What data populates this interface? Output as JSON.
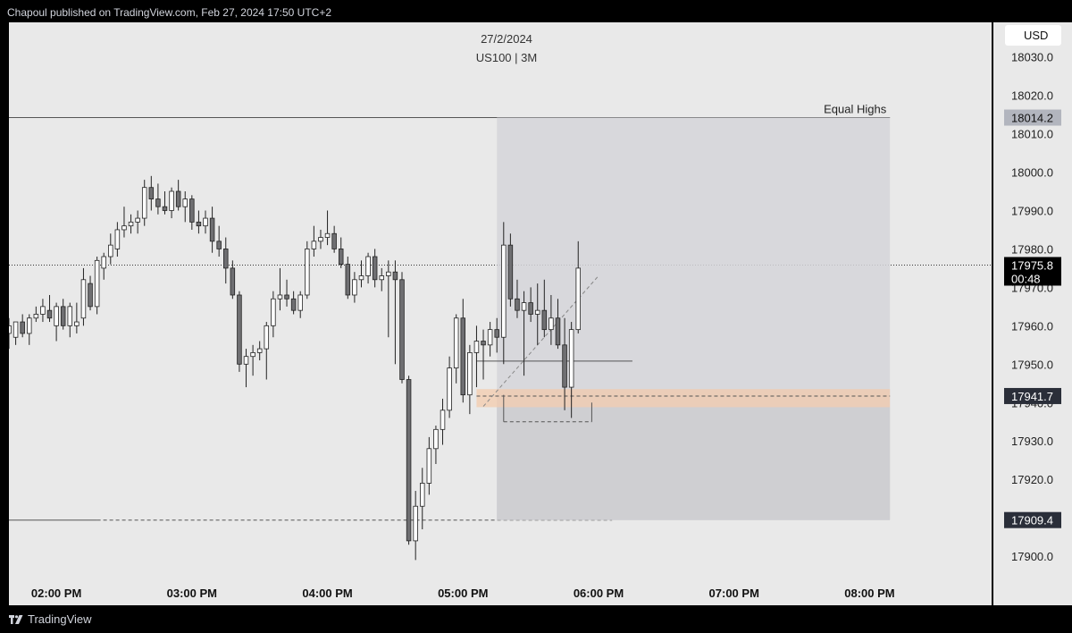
{
  "header": {
    "published": "Chapoul published on TradingView.com, Feb 27, 2024 17:50 UTC+2"
  },
  "footer": {
    "brand": "TradingView",
    "logo_icon": "tradingview-logo-icon"
  },
  "chart_data": {
    "type": "candlestick",
    "title": "27/2/2024",
    "subtitle": "US100 | 3M",
    "currency": "USD",
    "yticks": [
      17900.0,
      17910.0,
      17920.0,
      17930.0,
      17940.0,
      17950.0,
      17960.0,
      17970.0,
      17980.0,
      17990.0,
      18000.0,
      18010.0,
      18020.0,
      18030.0
    ],
    "ylim": [
      17893.5,
      18039.0
    ],
    "xticks": [
      "02:00 PM",
      "03:00 PM",
      "04:00 PM",
      "05:00 PM",
      "06:00 PM",
      "07:00 PM",
      "08:00 PM"
    ],
    "xtick_minutes": [
      840,
      900,
      960,
      1020,
      1080,
      1140,
      1200
    ],
    "xlim_minutes": [
      819,
      1254
    ],
    "price_labels": [
      {
        "text": "18014.2",
        "value": 18014.2,
        "style": "gray"
      },
      {
        "text": "17975.8",
        "value": 17975.8,
        "style": "black",
        "sub": "00:48"
      },
      {
        "text": "17941.7",
        "value": 17941.7,
        "style": "dark"
      },
      {
        "text": "17909.4",
        "value": 17909.4,
        "style": "dark"
      }
    ],
    "annotations": [
      {
        "type": "hline",
        "value": 18014.2,
        "from": 819,
        "to": 1209,
        "label": "Equal Highs"
      },
      {
        "type": "hline-dotted",
        "value": 17975.8
      },
      {
        "type": "hline",
        "value": 17909.4,
        "from": 819,
        "to": 858
      },
      {
        "type": "hline-dashed",
        "value": 17909.4,
        "from": 858,
        "to": 1086
      },
      {
        "type": "rect",
        "from": 1035,
        "to": 1209,
        "top": 18014.2,
        "bottom": 17909.4
      },
      {
        "type": "zone",
        "from": 1026,
        "to": 1209,
        "top": 17943.5,
        "bottom": 17938.8
      },
      {
        "type": "hline-dashed",
        "value": 17941.7,
        "from": 1026,
        "to": 1209
      },
      {
        "type": "hline",
        "value": 17950.8,
        "from": 1026,
        "to": 1095
      },
      {
        "type": "hline-dashed",
        "value": 17935.0,
        "from": 1038,
        "to": 1077
      },
      {
        "type": "trend-dashed",
        "from": [
          1029,
          17939.0
        ],
        "to": [
          1080,
          17973.0
        ]
      }
    ],
    "candles": [
      {
        "t": 819,
        "o": 17958,
        "h": 17962,
        "l": 17954,
        "c": 17960
      },
      {
        "t": 822,
        "o": 17957,
        "h": 17961,
        "l": 17955,
        "c": 17961
      },
      {
        "t": 825,
        "o": 17961,
        "h": 17963,
        "l": 17957,
        "c": 17958
      },
      {
        "t": 828,
        "o": 17958,
        "h": 17963,
        "l": 17955,
        "c": 17962
      },
      {
        "t": 831,
        "o": 17962,
        "h": 17965,
        "l": 17961,
        "c": 17963
      },
      {
        "t": 834,
        "o": 17963,
        "h": 17967,
        "l": 17961,
        "c": 17965
      },
      {
        "t": 837,
        "o": 17964,
        "h": 17968,
        "l": 17961,
        "c": 17962
      },
      {
        "t": 840,
        "o": 17960,
        "h": 17966,
        "l": 17956,
        "c": 17965
      },
      {
        "t": 843,
        "o": 17965,
        "h": 17967,
        "l": 17959,
        "c": 17960
      },
      {
        "t": 846,
        "o": 17960,
        "h": 17966,
        "l": 17957,
        "c": 17965
      },
      {
        "t": 849,
        "o": 17960,
        "h": 17966,
        "l": 17958,
        "c": 17961
      },
      {
        "t": 852,
        "o": 17962,
        "h": 17975,
        "l": 17960,
        "c": 17972
      },
      {
        "t": 855,
        "o": 17971,
        "h": 17973,
        "l": 17964,
        "c": 17965
      },
      {
        "t": 858,
        "o": 17965,
        "h": 17978,
        "l": 17963,
        "c": 17977
      },
      {
        "t": 861,
        "o": 17975,
        "h": 17979,
        "l": 17972,
        "c": 17978
      },
      {
        "t": 864,
        "o": 17978,
        "h": 17984,
        "l": 17976,
        "c": 17981
      },
      {
        "t": 867,
        "o": 17980,
        "h": 17987,
        "l": 17978,
        "c": 17985
      },
      {
        "t": 870,
        "o": 17985,
        "h": 17991,
        "l": 17983,
        "c": 17986
      },
      {
        "t": 873,
        "o": 17986,
        "h": 17989,
        "l": 17984,
        "c": 17987
      },
      {
        "t": 876,
        "o": 17987,
        "h": 17990,
        "l": 17984,
        "c": 17988
      },
      {
        "t": 879,
        "o": 17988,
        "h": 17998,
        "l": 17986,
        "c": 17996
      },
      {
        "t": 882,
        "o": 17996,
        "h": 17999,
        "l": 17990,
        "c": 17993
      },
      {
        "t": 885,
        "o": 17993,
        "h": 17997,
        "l": 17989,
        "c": 17991
      },
      {
        "t": 888,
        "o": 17991,
        "h": 17995,
        "l": 17989,
        "c": 17990
      },
      {
        "t": 891,
        "o": 17990,
        "h": 17996,
        "l": 17988,
        "c": 17995
      },
      {
        "t": 894,
        "o": 17995,
        "h": 17998,
        "l": 17990,
        "c": 17991
      },
      {
        "t": 897,
        "o": 17991,
        "h": 17995,
        "l": 17987,
        "c": 17993
      },
      {
        "t": 900,
        "o": 17993,
        "h": 17994,
        "l": 17985,
        "c": 17987
      },
      {
        "t": 903,
        "o": 17987,
        "h": 17990,
        "l": 17984,
        "c": 17986
      },
      {
        "t": 906,
        "o": 17986,
        "h": 17990,
        "l": 17984,
        "c": 17988
      },
      {
        "t": 909,
        "o": 17988,
        "h": 17991,
        "l": 17979,
        "c": 17982
      },
      {
        "t": 912,
        "o": 17982,
        "h": 17986,
        "l": 17978,
        "c": 17980
      },
      {
        "t": 915,
        "o": 17980,
        "h": 17983,
        "l": 17971,
        "c": 17975
      },
      {
        "t": 918,
        "o": 17975,
        "h": 17977,
        "l": 17967,
        "c": 17968
      },
      {
        "t": 921,
        "o": 17968,
        "h": 17969,
        "l": 17948,
        "c": 17950
      },
      {
        "t": 924,
        "o": 17950,
        "h": 17954,
        "l": 17944,
        "c": 17952
      },
      {
        "t": 927,
        "o": 17952,
        "h": 17955,
        "l": 17947,
        "c": 17953
      },
      {
        "t": 930,
        "o": 17953,
        "h": 17956,
        "l": 17951,
        "c": 17954
      },
      {
        "t": 933,
        "o": 17954,
        "h": 17961,
        "l": 17946,
        "c": 17960
      },
      {
        "t": 936,
        "o": 17960,
        "h": 17969,
        "l": 17957,
        "c": 17967
      },
      {
        "t": 939,
        "o": 17967,
        "h": 17975,
        "l": 17964,
        "c": 17968
      },
      {
        "t": 942,
        "o": 17968,
        "h": 17972,
        "l": 17965,
        "c": 17967
      },
      {
        "t": 945,
        "o": 17967,
        "h": 17969,
        "l": 17963,
        "c": 17964
      },
      {
        "t": 948,
        "o": 17964,
        "h": 17969,
        "l": 17962,
        "c": 17968
      },
      {
        "t": 951,
        "o": 17968,
        "h": 17982,
        "l": 17967,
        "c": 17980
      },
      {
        "t": 954,
        "o": 17980,
        "h": 17986,
        "l": 17978,
        "c": 17982
      },
      {
        "t": 957,
        "o": 17982,
        "h": 17985,
        "l": 17980,
        "c": 17983
      },
      {
        "t": 960,
        "o": 17983,
        "h": 17990,
        "l": 17981,
        "c": 17984
      },
      {
        "t": 963,
        "o": 17984,
        "h": 17986,
        "l": 17979,
        "c": 17980
      },
      {
        "t": 966,
        "o": 17980,
        "h": 17983,
        "l": 17975,
        "c": 17976
      },
      {
        "t": 969,
        "o": 17976,
        "h": 17978,
        "l": 17967,
        "c": 17968
      },
      {
        "t": 972,
        "o": 17968,
        "h": 17974,
        "l": 17966,
        "c": 17972
      },
      {
        "t": 975,
        "o": 17972,
        "h": 17977,
        "l": 17970,
        "c": 17973
      },
      {
        "t": 978,
        "o": 17973,
        "h": 17979,
        "l": 17971,
        "c": 17978
      },
      {
        "t": 981,
        "o": 17978,
        "h": 17980,
        "l": 17970,
        "c": 17972
      },
      {
        "t": 984,
        "o": 17972,
        "h": 17975,
        "l": 17969,
        "c": 17973
      },
      {
        "t": 987,
        "o": 17973,
        "h": 17977,
        "l": 17957,
        "c": 17974
      },
      {
        "t": 990,
        "o": 17974,
        "h": 17977,
        "l": 17950,
        "c": 17972
      },
      {
        "t": 993,
        "o": 17972,
        "h": 17974,
        "l": 17945,
        "c": 17946
      },
      {
        "t": 996,
        "o": 17946,
        "h": 17947,
        "l": 17903,
        "c": 17904
      },
      {
        "t": 999,
        "o": 17904,
        "h": 17917,
        "l": 17899,
        "c": 17913
      },
      {
        "t": 1002,
        "o": 17913,
        "h": 17923,
        "l": 17907,
        "c": 17919
      },
      {
        "t": 1005,
        "o": 17919,
        "h": 17931,
        "l": 17916,
        "c": 17928
      },
      {
        "t": 1008,
        "o": 17928,
        "h": 17934,
        "l": 17924,
        "c": 17933
      },
      {
        "t": 1011,
        "o": 17933,
        "h": 17941,
        "l": 17929,
        "c": 17938
      },
      {
        "t": 1014,
        "o": 17938,
        "h": 17952,
        "l": 17936,
        "c": 17949
      },
      {
        "t": 1017,
        "o": 17949,
        "h": 17963,
        "l": 17945,
        "c": 17962
      },
      {
        "t": 1020,
        "o": 17962,
        "h": 17967,
        "l": 17940,
        "c": 17942
      },
      {
        "t": 1023,
        "o": 17942,
        "h": 17955,
        "l": 17937,
        "c": 17953
      },
      {
        "t": 1026,
        "o": 17953,
        "h": 17960,
        "l": 17944,
        "c": 17956
      },
      {
        "t": 1029,
        "o": 17956,
        "h": 17959,
        "l": 17946,
        "c": 17955
      },
      {
        "t": 1032,
        "o": 17955,
        "h": 17961,
        "l": 17952,
        "c": 17959
      },
      {
        "t": 1035,
        "o": 17959,
        "h": 17962,
        "l": 17953,
        "c": 17957
      },
      {
        "t": 1038,
        "o": 17957,
        "h": 17987,
        "l": 17950,
        "c": 17981
      },
      {
        "t": 1041,
        "o": 17981,
        "h": 17984,
        "l": 17965,
        "c": 17967
      },
      {
        "t": 1044,
        "o": 17967,
        "h": 17972,
        "l": 17962,
        "c": 17964
      },
      {
        "t": 1047,
        "o": 17964,
        "h": 17969,
        "l": 17947,
        "c": 17966
      },
      {
        "t": 1050,
        "o": 17966,
        "h": 17970,
        "l": 17961,
        "c": 17963
      },
      {
        "t": 1053,
        "o": 17963,
        "h": 17971,
        "l": 17955,
        "c": 17964
      },
      {
        "t": 1056,
        "o": 17964,
        "h": 17972,
        "l": 17957,
        "c": 17959
      },
      {
        "t": 1059,
        "o": 17959,
        "h": 17968,
        "l": 17955,
        "c": 17962
      },
      {
        "t": 1062,
        "o": 17962,
        "h": 17967,
        "l": 17954,
        "c": 17955
      },
      {
        "t": 1065,
        "o": 17955,
        "h": 17962,
        "l": 17938,
        "c": 17944
      },
      {
        "t": 1068,
        "o": 17944,
        "h": 17961,
        "l": 17936,
        "c": 17959
      },
      {
        "t": 1071,
        "o": 17959,
        "h": 17982,
        "l": 17958,
        "c": 17975
      }
    ]
  }
}
